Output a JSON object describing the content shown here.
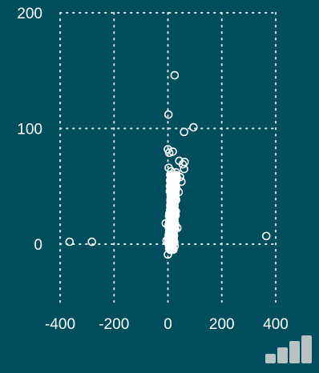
{
  "chart_data": {
    "type": "scatter",
    "title": "",
    "xlabel": "",
    "ylabel": "",
    "xlim": [
      -400,
      400
    ],
    "ylim": [
      -50,
      200
    ],
    "x_ticks": [
      -400,
      -200,
      0,
      200,
      400
    ],
    "y_ticks": [
      0,
      100,
      200
    ],
    "x_tick_labels": [
      "-400",
      "-200",
      "0",
      "200",
      "400"
    ],
    "y_tick_labels": [
      "0",
      "100",
      "200"
    ],
    "grid": true,
    "grid_style": "dotted",
    "marker": "hollow-circle",
    "colors": {
      "background": "#004d5e",
      "marker": "#ffffff",
      "grid": "#d8e6ea",
      "text": "#ffffff"
    },
    "series": [
      {
        "points": [
          [
            -365,
            2
          ],
          [
            -282,
            2
          ],
          [
            365,
            7
          ],
          [
            25,
            146
          ],
          [
            2,
            112
          ],
          [
            95,
            101
          ],
          [
            60,
            97
          ],
          [
            0,
            82
          ],
          [
            5,
            79
          ],
          [
            18,
            80
          ],
          [
            42,
            72
          ],
          [
            55,
            69
          ],
          [
            62,
            71
          ],
          [
            60,
            65
          ],
          [
            3,
            66
          ],
          [
            12,
            63
          ],
          [
            30,
            62
          ],
          [
            45,
            58
          ],
          [
            8,
            55
          ],
          [
            22,
            52
          ],
          [
            50,
            54
          ],
          [
            0,
            -9
          ],
          [
            -5,
            3
          ],
          [
            5,
            0
          ],
          [
            3,
            8
          ],
          [
            -8,
            18
          ],
          [
            10,
            15
          ],
          [
            18,
            20
          ],
          [
            35,
            14
          ],
          [
            8,
            25
          ],
          [
            20,
            30
          ],
          [
            30,
            38
          ],
          [
            15,
            45
          ],
          [
            25,
            48
          ],
          [
            40,
            45
          ]
        ],
        "cluster": {
          "center_x": 12,
          "x_spread": 28,
          "y_min": -5,
          "y_max": 60,
          "count": 420
        }
      }
    ]
  },
  "logo": {
    "name": "bars-logo-icon"
  }
}
